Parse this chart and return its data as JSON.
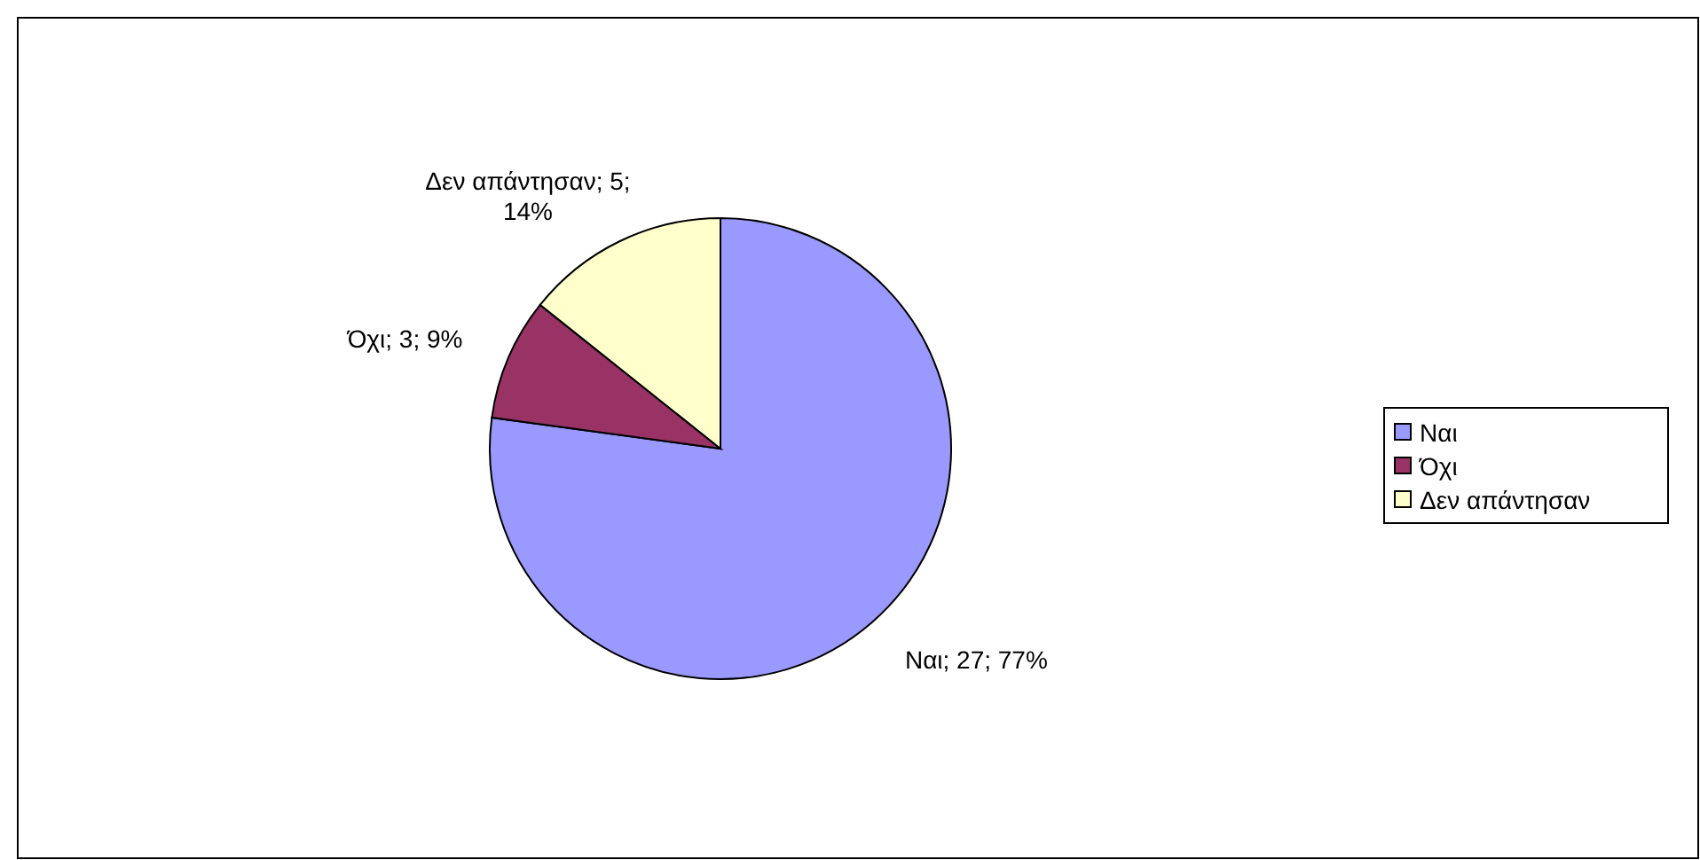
{
  "chart_data": {
    "type": "pie",
    "categories": [
      "Ναι",
      "Όχι",
      "Δεν απάντησαν"
    ],
    "values": [
      27,
      3,
      5
    ],
    "colors": [
      "#9999ff",
      "#993366",
      "#ffffcc"
    ],
    "value_labels": [
      "Ναι; 27; 77%",
      "Όχι; 3; 9%",
      "Δεν απάντησαν; 5; 14%"
    ],
    "legend": "right"
  }
}
